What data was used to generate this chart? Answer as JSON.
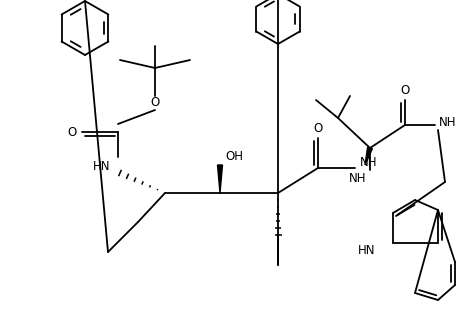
{
  "fig_width": 4.76,
  "fig_height": 3.11,
  "dpi": 100,
  "lw": 1.3,
  "fs": 8.5,
  "xlim": [
    0,
    476
  ],
  "ylim": [
    0,
    311
  ]
}
